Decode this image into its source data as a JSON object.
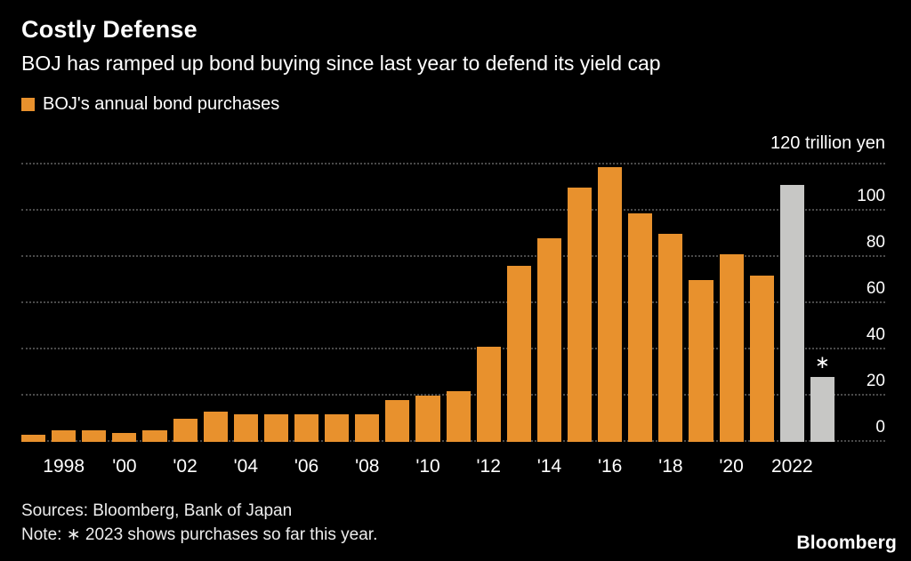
{
  "colors": {
    "background": "#000000",
    "bar_orange": "#E8912D",
    "bar_gray": "#C7C7C5",
    "gridline": "#4A4A4A",
    "text": "#FFFFFF"
  },
  "header": {
    "title": "Costly Defense",
    "subtitle": "BOJ has ramped up bond buying since last year to defend its yield cap"
  },
  "legend": {
    "label": "BOJ's annual bond purchases",
    "swatch_color": "#E8912D"
  },
  "chart_data": {
    "type": "bar",
    "title": "Costly Defense",
    "subtitle": "BOJ has ramped up bond buying since last year to defend its yield cap",
    "series_name": "BOJ's annual bond purchases",
    "unit_label": "120 trillion yen",
    "ylabel": "trillion yen",
    "ylim": [
      0,
      120
    ],
    "gridline_values": [
      0,
      20,
      40,
      60,
      80,
      100,
      120
    ],
    "yticks": [
      0,
      20,
      40,
      60,
      80,
      100
    ],
    "grid": "horizontal-dotted",
    "legend_position": "top-left",
    "categories": [
      1997,
      1998,
      1999,
      2000,
      2001,
      2002,
      2003,
      2004,
      2005,
      2006,
      2007,
      2008,
      2009,
      2010,
      2011,
      2012,
      2013,
      2014,
      2015,
      2016,
      2017,
      2018,
      2019,
      2020,
      2021,
      2022,
      2023
    ],
    "values": [
      3,
      5,
      5,
      4,
      5,
      10,
      13,
      12,
      12,
      12,
      12,
      12,
      18,
      20,
      22,
      41,
      76,
      88,
      110,
      119,
      99,
      90,
      70,
      81,
      72,
      111,
      28
    ],
    "bar_colors": [
      "orange",
      "orange",
      "orange",
      "orange",
      "orange",
      "orange",
      "orange",
      "orange",
      "orange",
      "orange",
      "orange",
      "orange",
      "orange",
      "orange",
      "orange",
      "orange",
      "orange",
      "orange",
      "orange",
      "orange",
      "orange",
      "orange",
      "orange",
      "orange",
      "orange",
      "gray",
      "gray"
    ],
    "x_tick_labels": [
      "",
      "1998",
      "",
      "'00",
      "",
      "'02",
      "",
      "'04",
      "",
      "'06",
      "",
      "'08",
      "",
      "'10",
      "",
      "'12",
      "",
      "'14",
      "",
      "'16",
      "",
      "'18",
      "",
      "'20",
      "",
      "2022",
      ""
    ],
    "annotations": [
      {
        "category": 2023,
        "text": "∗",
        "position": "above-bar"
      }
    ]
  },
  "footer": {
    "sources": "Sources: Bloomberg, Bank of Japan",
    "note": "Note: ∗ 2023 shows purchases so far this year.",
    "logo": "Bloomberg"
  }
}
